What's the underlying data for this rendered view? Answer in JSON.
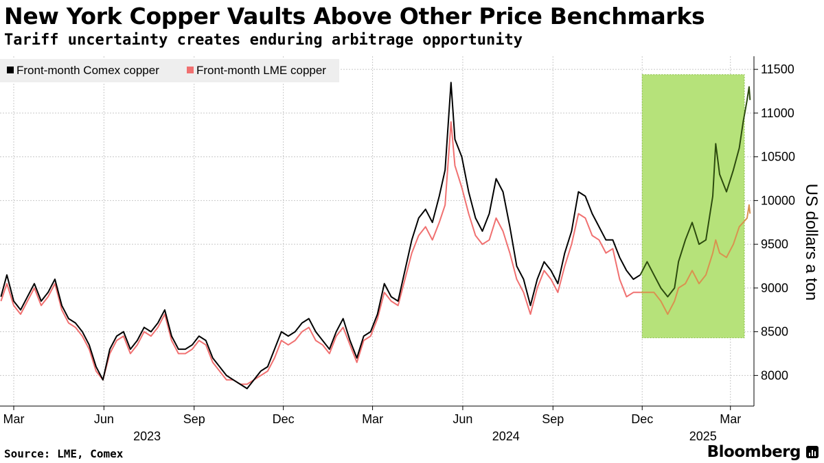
{
  "header": {
    "title": "New York Copper Vaults Above Other Price Benchmarks",
    "subtitle": "Tariff uncertainty creates enduring arbitrage opportunity"
  },
  "footer": {
    "source": "Source: LME, Comex",
    "brand": "Bloomberg"
  },
  "colors": {
    "comex": "#000000",
    "lme": "#f07070",
    "comex_highlight": "#2c4a0e",
    "lme_highlight": "#d9924f",
    "highlight_fill": "#b6e27a",
    "highlight_border": "#8bbf4a",
    "grid": "#c8c8c8",
    "legend_bg": "#eeeeee"
  },
  "chart_data": {
    "type": "line",
    "title": "New York Copper Vaults Above Other Price Benchmarks",
    "ylabel": "US dollars a ton",
    "xlabel": "",
    "ylim": [
      7650,
      11650
    ],
    "xlim": [
      "2023-02-15",
      "2025-03-25"
    ],
    "y_ticks": [
      8000,
      8500,
      9000,
      9500,
      10000,
      10500,
      11000,
      11500
    ],
    "y_tick_labels": [
      "8000",
      "8500",
      "9000",
      "9500",
      "10000",
      "10500",
      "11000",
      "11500"
    ],
    "x_ticks": [
      {
        "date": "2023-03-01",
        "label": "Mar"
      },
      {
        "date": "2023-06-01",
        "label": "Jun"
      },
      {
        "date": "2023-09-01",
        "label": "Sep"
      },
      {
        "date": "2023-12-01",
        "label": "Dec"
      },
      {
        "date": "2024-03-01",
        "label": "Mar"
      },
      {
        "date": "2024-06-01",
        "label": "Jun"
      },
      {
        "date": "2024-09-01",
        "label": "Sep"
      },
      {
        "date": "2024-12-01",
        "label": "Dec"
      },
      {
        "date": "2025-03-01",
        "label": "Mar"
      }
    ],
    "year_labels": [
      {
        "date": "2023-07-15",
        "label": "2023"
      },
      {
        "date": "2024-07-15",
        "label": "2024"
      },
      {
        "date": "2025-02-01",
        "label": "2025"
      }
    ],
    "legend": {
      "position": "top-left"
    },
    "highlight": {
      "from": "2024-12-01",
      "to": "2025-03-31",
      "ymin": 8430,
      "ymax": 11440
    },
    "grid": true,
    "series": [
      {
        "name": "Front-month Comex copper",
        "color_key": "comex",
        "highlight_color_key": "comex_highlight",
        "points": [
          [
            "2023-02-16",
            8900
          ],
          [
            "2023-02-22",
            9150
          ],
          [
            "2023-03-01",
            8850
          ],
          [
            "2023-03-08",
            8750
          ],
          [
            "2023-03-15",
            8900
          ],
          [
            "2023-03-22",
            9050
          ],
          [
            "2023-03-29",
            8850
          ],
          [
            "2023-04-05",
            8950
          ],
          [
            "2023-04-12",
            9100
          ],
          [
            "2023-04-19",
            8800
          ],
          [
            "2023-04-26",
            8650
          ],
          [
            "2023-05-03",
            8600
          ],
          [
            "2023-05-10",
            8500
          ],
          [
            "2023-05-17",
            8350
          ],
          [
            "2023-05-24",
            8100
          ],
          [
            "2023-05-31",
            7950
          ],
          [
            "2023-06-07",
            8300
          ],
          [
            "2023-06-14",
            8450
          ],
          [
            "2023-06-21",
            8500
          ],
          [
            "2023-06-28",
            8300
          ],
          [
            "2023-07-05",
            8400
          ],
          [
            "2023-07-12",
            8550
          ],
          [
            "2023-07-19",
            8500
          ],
          [
            "2023-07-26",
            8600
          ],
          [
            "2023-08-02",
            8750
          ],
          [
            "2023-08-09",
            8450
          ],
          [
            "2023-08-16",
            8300
          ],
          [
            "2023-08-23",
            8300
          ],
          [
            "2023-08-30",
            8350
          ],
          [
            "2023-09-06",
            8450
          ],
          [
            "2023-09-13",
            8400
          ],
          [
            "2023-09-20",
            8200
          ],
          [
            "2023-09-27",
            8100
          ],
          [
            "2023-10-04",
            8000
          ],
          [
            "2023-10-11",
            7950
          ],
          [
            "2023-10-18",
            7900
          ],
          [
            "2023-10-25",
            7850
          ],
          [
            "2023-11-01",
            7950
          ],
          [
            "2023-11-08",
            8050
          ],
          [
            "2023-11-15",
            8100
          ],
          [
            "2023-11-22",
            8300
          ],
          [
            "2023-11-29",
            8500
          ],
          [
            "2023-12-06",
            8450
          ],
          [
            "2023-12-13",
            8500
          ],
          [
            "2023-12-20",
            8600
          ],
          [
            "2023-12-27",
            8650
          ],
          [
            "2024-01-03",
            8500
          ],
          [
            "2024-01-10",
            8400
          ],
          [
            "2024-01-17",
            8300
          ],
          [
            "2024-01-24",
            8500
          ],
          [
            "2024-01-31",
            8650
          ],
          [
            "2024-02-07",
            8400
          ],
          [
            "2024-02-14",
            8200
          ],
          [
            "2024-02-21",
            8450
          ],
          [
            "2024-02-28",
            8500
          ],
          [
            "2024-03-06",
            8700
          ],
          [
            "2024-03-13",
            9050
          ],
          [
            "2024-03-20",
            8900
          ],
          [
            "2024-03-27",
            8850
          ],
          [
            "2024-04-03",
            9200
          ],
          [
            "2024-04-10",
            9550
          ],
          [
            "2024-04-17",
            9800
          ],
          [
            "2024-04-24",
            9900
          ],
          [
            "2024-05-01",
            9750
          ],
          [
            "2024-05-08",
            10050
          ],
          [
            "2024-05-14",
            10350
          ],
          [
            "2024-05-20",
            11350
          ],
          [
            "2024-05-24",
            10700
          ],
          [
            "2024-05-31",
            10500
          ],
          [
            "2024-06-07",
            10100
          ],
          [
            "2024-06-14",
            9800
          ],
          [
            "2024-06-21",
            9650
          ],
          [
            "2024-06-28",
            9850
          ],
          [
            "2024-07-05",
            10250
          ],
          [
            "2024-07-12",
            10100
          ],
          [
            "2024-07-19",
            9700
          ],
          [
            "2024-07-26",
            9250
          ],
          [
            "2024-08-02",
            9100
          ],
          [
            "2024-08-09",
            8800
          ],
          [
            "2024-08-16",
            9100
          ],
          [
            "2024-08-23",
            9300
          ],
          [
            "2024-08-30",
            9200
          ],
          [
            "2024-09-06",
            9050
          ],
          [
            "2024-09-13",
            9400
          ],
          [
            "2024-09-20",
            9650
          ],
          [
            "2024-09-27",
            10100
          ],
          [
            "2024-10-04",
            10050
          ],
          [
            "2024-10-11",
            9850
          ],
          [
            "2024-10-18",
            9700
          ],
          [
            "2024-10-25",
            9550
          ],
          [
            "2024-11-01",
            9550
          ],
          [
            "2024-11-08",
            9350
          ],
          [
            "2024-11-15",
            9200
          ],
          [
            "2024-11-22",
            9100
          ],
          [
            "2024-11-29",
            9150
          ],
          [
            "2024-12-06",
            9300
          ],
          [
            "2024-12-13",
            9150
          ],
          [
            "2024-12-20",
            9000
          ],
          [
            "2024-12-27",
            8900
          ],
          [
            "2025-01-03",
            9000
          ],
          [
            "2025-01-07",
            9300
          ],
          [
            "2025-01-14",
            9550
          ],
          [
            "2025-01-21",
            9750
          ],
          [
            "2025-01-28",
            9500
          ],
          [
            "2025-02-04",
            9550
          ],
          [
            "2025-02-11",
            10050
          ],
          [
            "2025-02-14",
            10650
          ],
          [
            "2025-02-18",
            10300
          ],
          [
            "2025-02-25",
            10100
          ],
          [
            "2025-03-04",
            10350
          ],
          [
            "2025-03-10",
            10600
          ],
          [
            "2025-03-14",
            10900
          ],
          [
            "2025-03-18",
            11150
          ],
          [
            "2025-03-20",
            11300
          ],
          [
            "2025-03-21",
            11150
          ]
        ]
      },
      {
        "name": "Front-month LME copper",
        "color_key": "lme",
        "highlight_color_key": "lme_highlight",
        "points": [
          [
            "2023-02-16",
            8850
          ],
          [
            "2023-02-22",
            9050
          ],
          [
            "2023-03-01",
            8800
          ],
          [
            "2023-03-08",
            8700
          ],
          [
            "2023-03-15",
            8850
          ],
          [
            "2023-03-22",
            9000
          ],
          [
            "2023-03-29",
            8800
          ],
          [
            "2023-04-05",
            8900
          ],
          [
            "2023-04-12",
            9050
          ],
          [
            "2023-04-19",
            8750
          ],
          [
            "2023-04-26",
            8600
          ],
          [
            "2023-05-03",
            8550
          ],
          [
            "2023-05-10",
            8450
          ],
          [
            "2023-05-17",
            8300
          ],
          [
            "2023-05-24",
            8050
          ],
          [
            "2023-05-31",
            7950
          ],
          [
            "2023-06-07",
            8250
          ],
          [
            "2023-06-14",
            8400
          ],
          [
            "2023-06-21",
            8450
          ],
          [
            "2023-06-28",
            8250
          ],
          [
            "2023-07-05",
            8350
          ],
          [
            "2023-07-12",
            8500
          ],
          [
            "2023-07-19",
            8450
          ],
          [
            "2023-07-26",
            8550
          ],
          [
            "2023-08-02",
            8700
          ],
          [
            "2023-08-09",
            8400
          ],
          [
            "2023-08-16",
            8250
          ],
          [
            "2023-08-23",
            8250
          ],
          [
            "2023-08-30",
            8300
          ],
          [
            "2023-09-06",
            8400
          ],
          [
            "2023-09-13",
            8350
          ],
          [
            "2023-09-20",
            8150
          ],
          [
            "2023-09-27",
            8050
          ],
          [
            "2023-10-04",
            7950
          ],
          [
            "2023-10-11",
            7950
          ],
          [
            "2023-10-18",
            7900
          ],
          [
            "2023-10-25",
            7900
          ],
          [
            "2023-11-01",
            7950
          ],
          [
            "2023-11-08",
            8000
          ],
          [
            "2023-11-15",
            8050
          ],
          [
            "2023-11-22",
            8200
          ],
          [
            "2023-11-29",
            8400
          ],
          [
            "2023-12-06",
            8350
          ],
          [
            "2023-12-13",
            8400
          ],
          [
            "2023-12-20",
            8500
          ],
          [
            "2023-12-27",
            8550
          ],
          [
            "2024-01-03",
            8400
          ],
          [
            "2024-01-10",
            8350
          ],
          [
            "2024-01-17",
            8250
          ],
          [
            "2024-01-24",
            8450
          ],
          [
            "2024-01-31",
            8550
          ],
          [
            "2024-02-07",
            8350
          ],
          [
            "2024-02-14",
            8150
          ],
          [
            "2024-02-21",
            8400
          ],
          [
            "2024-02-28",
            8450
          ],
          [
            "2024-03-06",
            8650
          ],
          [
            "2024-03-13",
            8950
          ],
          [
            "2024-03-20",
            8850
          ],
          [
            "2024-03-27",
            8800
          ],
          [
            "2024-04-03",
            9100
          ],
          [
            "2024-04-10",
            9400
          ],
          [
            "2024-04-17",
            9600
          ],
          [
            "2024-04-24",
            9700
          ],
          [
            "2024-05-01",
            9550
          ],
          [
            "2024-05-08",
            9750
          ],
          [
            "2024-05-14",
            9950
          ],
          [
            "2024-05-20",
            10900
          ],
          [
            "2024-05-24",
            10400
          ],
          [
            "2024-05-31",
            10150
          ],
          [
            "2024-06-07",
            9850
          ],
          [
            "2024-06-14",
            9600
          ],
          [
            "2024-06-21",
            9500
          ],
          [
            "2024-06-28",
            9550
          ],
          [
            "2024-07-05",
            9800
          ],
          [
            "2024-07-12",
            9650
          ],
          [
            "2024-07-19",
            9400
          ],
          [
            "2024-07-26",
            9100
          ],
          [
            "2024-08-02",
            8950
          ],
          [
            "2024-08-09",
            8700
          ],
          [
            "2024-08-16",
            9000
          ],
          [
            "2024-08-23",
            9200
          ],
          [
            "2024-08-30",
            9100
          ],
          [
            "2024-09-06",
            8950
          ],
          [
            "2024-09-13",
            9250
          ],
          [
            "2024-09-20",
            9500
          ],
          [
            "2024-09-27",
            9850
          ],
          [
            "2024-10-04",
            9800
          ],
          [
            "2024-10-11",
            9600
          ],
          [
            "2024-10-18",
            9550
          ],
          [
            "2024-10-25",
            9400
          ],
          [
            "2024-11-01",
            9450
          ],
          [
            "2024-11-08",
            9100
          ],
          [
            "2024-11-15",
            8900
          ],
          [
            "2024-11-22",
            8950
          ],
          [
            "2024-11-29",
            8950
          ],
          [
            "2024-12-06",
            8950
          ],
          [
            "2024-12-13",
            8950
          ],
          [
            "2024-12-20",
            8850
          ],
          [
            "2024-12-27",
            8700
          ],
          [
            "2025-01-03",
            8850
          ],
          [
            "2025-01-07",
            9000
          ],
          [
            "2025-01-14",
            9050
          ],
          [
            "2025-01-21",
            9200
          ],
          [
            "2025-01-28",
            9050
          ],
          [
            "2025-02-04",
            9150
          ],
          [
            "2025-02-11",
            9400
          ],
          [
            "2025-02-14",
            9550
          ],
          [
            "2025-02-18",
            9400
          ],
          [
            "2025-02-25",
            9350
          ],
          [
            "2025-03-04",
            9500
          ],
          [
            "2025-03-10",
            9700
          ],
          [
            "2025-03-14",
            9750
          ],
          [
            "2025-03-18",
            9800
          ],
          [
            "2025-03-20",
            9950
          ],
          [
            "2025-03-21",
            9850
          ]
        ]
      }
    ]
  }
}
